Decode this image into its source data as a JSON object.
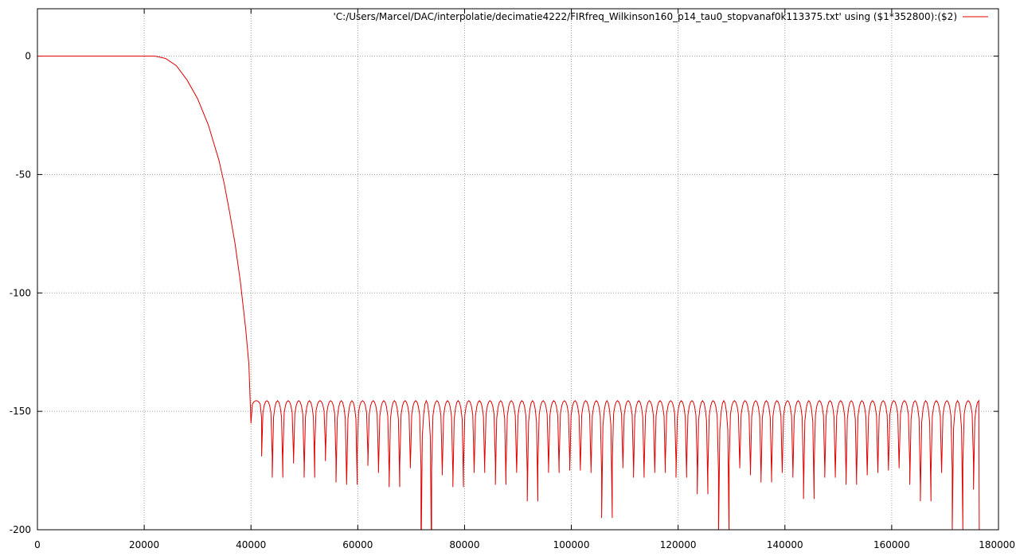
{
  "chart_data": {
    "type": "line",
    "title": "",
    "xlabel": "",
    "ylabel": "",
    "xlim": [
      0,
      180000
    ],
    "ylim": [
      -200,
      20
    ],
    "grid": true,
    "legend_position": "top-right",
    "x_ticks": [
      "0",
      "20000",
      "40000",
      "60000",
      "80000",
      "100000",
      "120000",
      "140000",
      "160000",
      "180000"
    ],
    "y_ticks": [
      "0",
      "-50",
      "-100",
      "-150",
      "-200"
    ],
    "series": [
      {
        "name": "'C:/Users/Marcel/DAC/interpolatie/decimatie4222/FIRfreq_Wilkinson160_p14_tau0_stopvanaf0k113375.txt' using ($1*352800):($2)",
        "color": "#e00000",
        "passband": {
          "x": [
            0,
            20000,
            22000,
            24000,
            26000,
            28000,
            30000,
            32000,
            34000,
            35000,
            36000,
            37000,
            38000,
            39000,
            39600,
            40000
          ],
          "y": [
            0,
            0,
            0,
            -1,
            -4,
            -10,
            -18,
            -29,
            -44,
            -54,
            -66,
            -79,
            -95,
            -115,
            -130,
            -155
          ]
        },
        "stopband": {
          "x_start": 40000,
          "x_end": 176400,
          "lobe_width": 1990,
          "peak_level": -145.5,
          "null_levels": [
            -153,
            -169,
            -178,
            -169,
            -172,
            -178,
            -165,
            -171,
            -180,
            -181,
            -168,
            -173,
            -176,
            -182,
            -173,
            -174,
            -216,
            -175,
            -177,
            -182,
            -174,
            -176,
            -172,
            -181,
            -175,
            -176,
            -188,
            -173,
            -176,
            -171,
            -175,
            -174,
            -176,
            -195,
            -172,
            -174,
            -178,
            -175,
            -176,
            -171,
            -178,
            -174,
            -185,
            -176,
            -203,
            -173,
            -174,
            -177,
            -180,
            -176,
            -175,
            -178,
            -187,
            -174,
            -178,
            -176,
            -181,
            -177,
            -176,
            -175,
            -174,
            -173,
            -181,
            -188,
            -176,
            -175,
            -200,
            -172,
            -183,
            -176,
            -175,
            -172,
            -176,
            -191,
            -173,
            -175,
            -177,
            -178,
            -176,
            -175,
            -168,
            -173,
            -175,
            -173,
            -177,
            -175,
            -180,
            -175,
            -171,
            -198,
            -177,
            -175,
            -176,
            -172,
            -180,
            -175,
            -176,
            -178,
            -177,
            -173,
            -172,
            -177,
            -174,
            -176,
            -172,
            -178,
            -174,
            -176,
            -173,
            -175,
            -170,
            -175,
            -178,
            -175,
            -175,
            -180,
            -176,
            -175,
            -199,
            -177,
            -175,
            -176,
            -173,
            -181,
            -176,
            -174,
            -174,
            -177,
            -178,
            -175,
            -176,
            -175,
            -177,
            -175,
            -176,
            -173,
            -177,
            -178,
            -175,
            -176,
            -172,
            -173
          ]
        }
      }
    ]
  }
}
